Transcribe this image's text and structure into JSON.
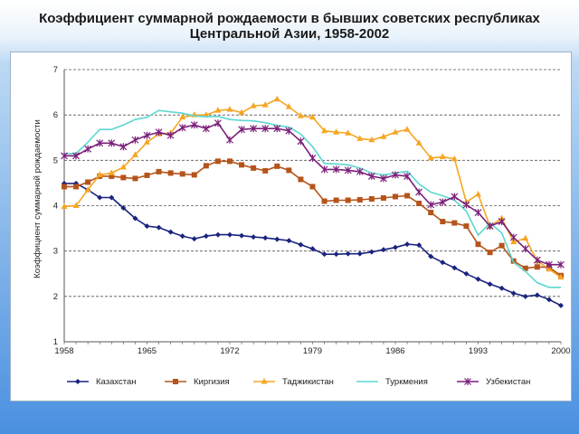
{
  "title": "Коэффициент суммарной рождаемости в бывших советских республиках Центральной Азии, 1958-2002",
  "chart_data": {
    "type": "line",
    "title": "Коэффициент суммарной рождаемости в бывших советских республиках Центральной Азии, 1958-2002",
    "xlabel": "",
    "ylabel": "Коэффициент суммарной рождаемости",
    "xlim": [
      1958,
      2000
    ],
    "ylim": [
      1,
      7
    ],
    "x_ticks": [
      "1958",
      "1965",
      "1972",
      "1979",
      "1986",
      "1993",
      "2000"
    ],
    "y_ticks": [
      "1",
      "2",
      "3",
      "4",
      "5",
      "6",
      "7"
    ],
    "grid": "horizontal dashed",
    "legend_position": "bottom",
    "x": [
      1958,
      1959,
      1960,
      1961,
      1962,
      1963,
      1964,
      1965,
      1966,
      1967,
      1968,
      1969,
      1970,
      1971,
      1972,
      1973,
      1974,
      1975,
      1976,
      1977,
      1978,
      1979,
      1980,
      1981,
      1982,
      1983,
      1984,
      1985,
      1986,
      1987,
      1988,
      1989,
      1990,
      1991,
      1992,
      1993,
      1994,
      1995,
      1996,
      1997,
      1998,
      1999,
      2000
    ],
    "series": [
      {
        "name": "Казахстан",
        "color": "#1a237e",
        "marker": "diamond",
        "values": [
          4.49,
          4.49,
          4.35,
          4.18,
          4.18,
          3.95,
          3.72,
          3.55,
          3.52,
          3.42,
          3.33,
          3.27,
          3.33,
          3.36,
          3.36,
          3.34,
          3.31,
          3.29,
          3.26,
          3.23,
          3.14,
          3.05,
          2.93,
          2.93,
          2.94,
          2.94,
          2.98,
          3.03,
          3.08,
          3.15,
          3.13,
          2.88,
          2.75,
          2.63,
          2.5,
          2.38,
          2.27,
          2.18,
          2.07,
          2.0,
          2.03,
          1.93,
          1.8
        ]
      },
      {
        "name": "Киргизия",
        "color": "#b5541a",
        "marker": "square",
        "values": [
          4.42,
          4.42,
          4.52,
          4.65,
          4.65,
          4.62,
          4.6,
          4.67,
          4.75,
          4.72,
          4.7,
          4.68,
          4.88,
          4.98,
          4.98,
          4.9,
          4.83,
          4.77,
          4.87,
          4.78,
          4.58,
          4.42,
          4.1,
          4.12,
          4.12,
          4.13,
          4.15,
          4.17,
          4.2,
          4.22,
          4.05,
          3.85,
          3.65,
          3.62,
          3.55,
          3.15,
          2.97,
          3.12,
          2.78,
          2.62,
          2.65,
          2.64,
          2.46
        ]
      },
      {
        "name": "Таджикистан",
        "color": "#f5a623",
        "marker": "triangle",
        "values": [
          3.98,
          4.0,
          4.35,
          4.68,
          4.72,
          4.85,
          5.12,
          5.4,
          5.58,
          5.6,
          5.95,
          6.0,
          6.0,
          6.1,
          6.12,
          6.05,
          6.2,
          6.22,
          6.35,
          6.18,
          5.98,
          5.95,
          5.65,
          5.62,
          5.6,
          5.48,
          5.45,
          5.52,
          5.62,
          5.68,
          5.38,
          5.05,
          5.08,
          5.03,
          4.08,
          4.25,
          3.55,
          3.72,
          3.2,
          3.28,
          2.78,
          2.6,
          2.42
        ]
      },
      {
        "name": "Туркмения",
        "color": "#5ed6d0",
        "marker": "none",
        "values": [
          5.15,
          5.15,
          5.4,
          5.68,
          5.68,
          5.78,
          5.9,
          5.95,
          6.1,
          6.07,
          6.04,
          5.98,
          5.96,
          5.97,
          5.9,
          5.88,
          5.87,
          5.83,
          5.77,
          5.73,
          5.58,
          5.3,
          4.93,
          4.92,
          4.9,
          4.83,
          4.72,
          4.68,
          4.72,
          4.76,
          4.48,
          4.3,
          4.22,
          4.12,
          3.88,
          3.35,
          3.62,
          3.4,
          2.75,
          2.55,
          2.3,
          2.2,
          2.2
        ]
      },
      {
        "name": "Узбекистан",
        "color": "#7b1f7b",
        "marker": "star",
        "values": [
          5.1,
          5.1,
          5.25,
          5.38,
          5.38,
          5.3,
          5.45,
          5.55,
          5.62,
          5.55,
          5.72,
          5.78,
          5.7,
          5.82,
          5.45,
          5.68,
          5.7,
          5.7,
          5.7,
          5.65,
          5.42,
          5.05,
          4.8,
          4.8,
          4.78,
          4.75,
          4.65,
          4.6,
          4.68,
          4.65,
          4.3,
          4.02,
          4.08,
          4.2,
          4.02,
          3.85,
          3.55,
          3.65,
          3.3,
          3.05,
          2.8,
          2.7,
          2.7
        ]
      }
    ]
  }
}
